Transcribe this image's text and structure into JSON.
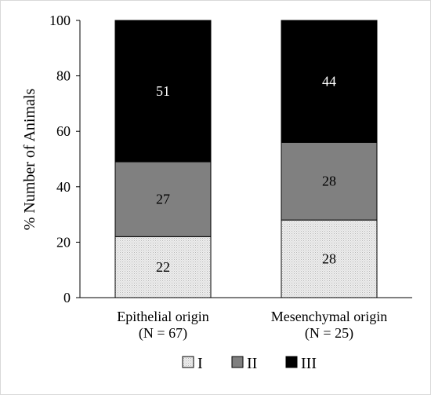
{
  "chart_data": {
    "type": "bar",
    "stacked": true,
    "xlabel": "",
    "ylabel": "% Number of Animals",
    "ylim": [
      0,
      100
    ],
    "yticks": [
      0,
      20,
      40,
      60,
      80,
      100
    ],
    "categories": [
      {
        "name": "Epithelial origin",
        "n_label": "(N = 67)"
      },
      {
        "name": "Mesenchymal origin",
        "n_label": "(N = 25)"
      }
    ],
    "series": [
      {
        "name": "I",
        "values": [
          22,
          28
        ],
        "color": "#e7e7e7",
        "pattern": "dotted-light",
        "label_color": "#000000"
      },
      {
        "name": "II",
        "values": [
          27,
          28
        ],
        "color": "#808080",
        "pattern": "solid",
        "label_color": "#000000"
      },
      {
        "name": "III",
        "values": [
          51,
          44
        ],
        "color": "#000000",
        "pattern": "solid",
        "label_color": "#ffffff"
      }
    ],
    "legend": {
      "position": "bottom"
    },
    "grid": false
  }
}
